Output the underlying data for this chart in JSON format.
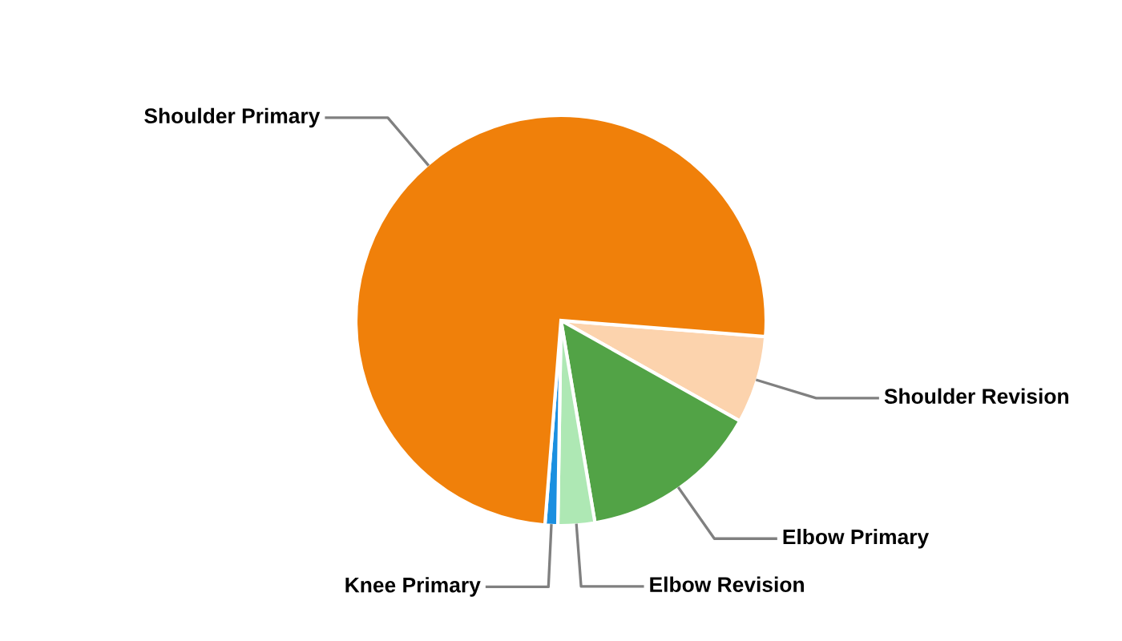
{
  "chart_data": {
    "type": "pie",
    "categories": [
      "Shoulder Revision",
      "Elbow Primary",
      "Elbow Revision",
      "Knee Primary",
      "Shoulder Primary"
    ],
    "values": [
      6.9,
      14.2,
      2.9,
      1.0,
      75.0
    ],
    "colors": [
      "#fcd3ad",
      "#52a346",
      "#aee8b4",
      "#1a8fe0",
      "#f0800a"
    ],
    "legend": false
  }
}
